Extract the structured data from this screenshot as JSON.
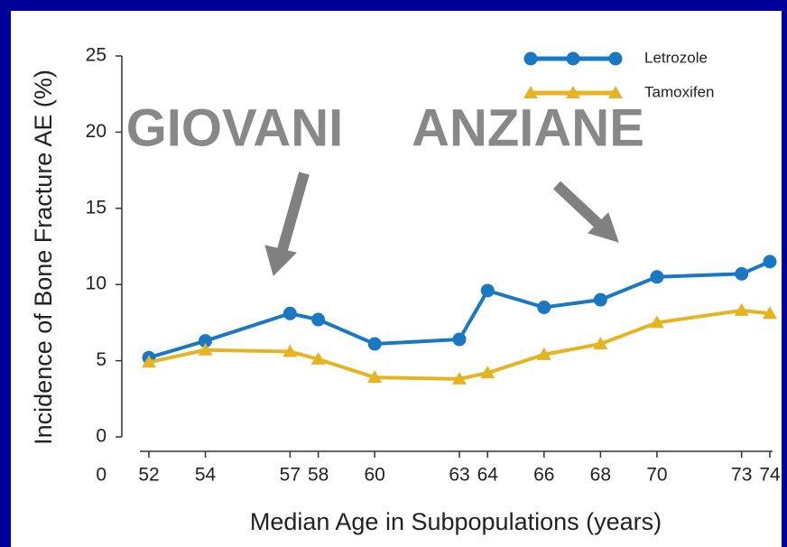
{
  "chart_data": {
    "type": "line",
    "x_label": "Median Age in Subpopulations (years)",
    "y_label": "Incidence of Bone Fracture AE (%)",
    "x_origin_label": "0",
    "x": [
      52,
      54,
      57,
      58,
      60,
      63,
      64,
      66,
      68,
      70,
      73,
      74
    ],
    "series": [
      {
        "name": "Letrozole",
        "color": "#1a78c2",
        "marker": "circle",
        "values": [
          5.2,
          6.3,
          8.1,
          7.7,
          6.1,
          6.4,
          9.6,
          8.5,
          9.0,
          10.5,
          10.7,
          11.5
        ]
      },
      {
        "name": "Tamoxifen",
        "color": "#e6b422",
        "marker": "triangle",
        "values": [
          4.9,
          5.7,
          5.6,
          5.1,
          3.9,
          3.8,
          4.2,
          5.4,
          6.1,
          7.5,
          8.3,
          8.1
        ]
      }
    ],
    "xlim": [
      52,
      74
    ],
    "xticks": [
      52,
      54,
      57,
      58,
      60,
      63,
      64,
      66,
      68,
      70,
      73,
      74
    ],
    "ylim": [
      0,
      25
    ],
    "yticks": [
      0,
      5,
      10,
      15,
      20,
      25
    ],
    "annotations": [
      "GIOVANI",
      "ANZIANE"
    ]
  }
}
